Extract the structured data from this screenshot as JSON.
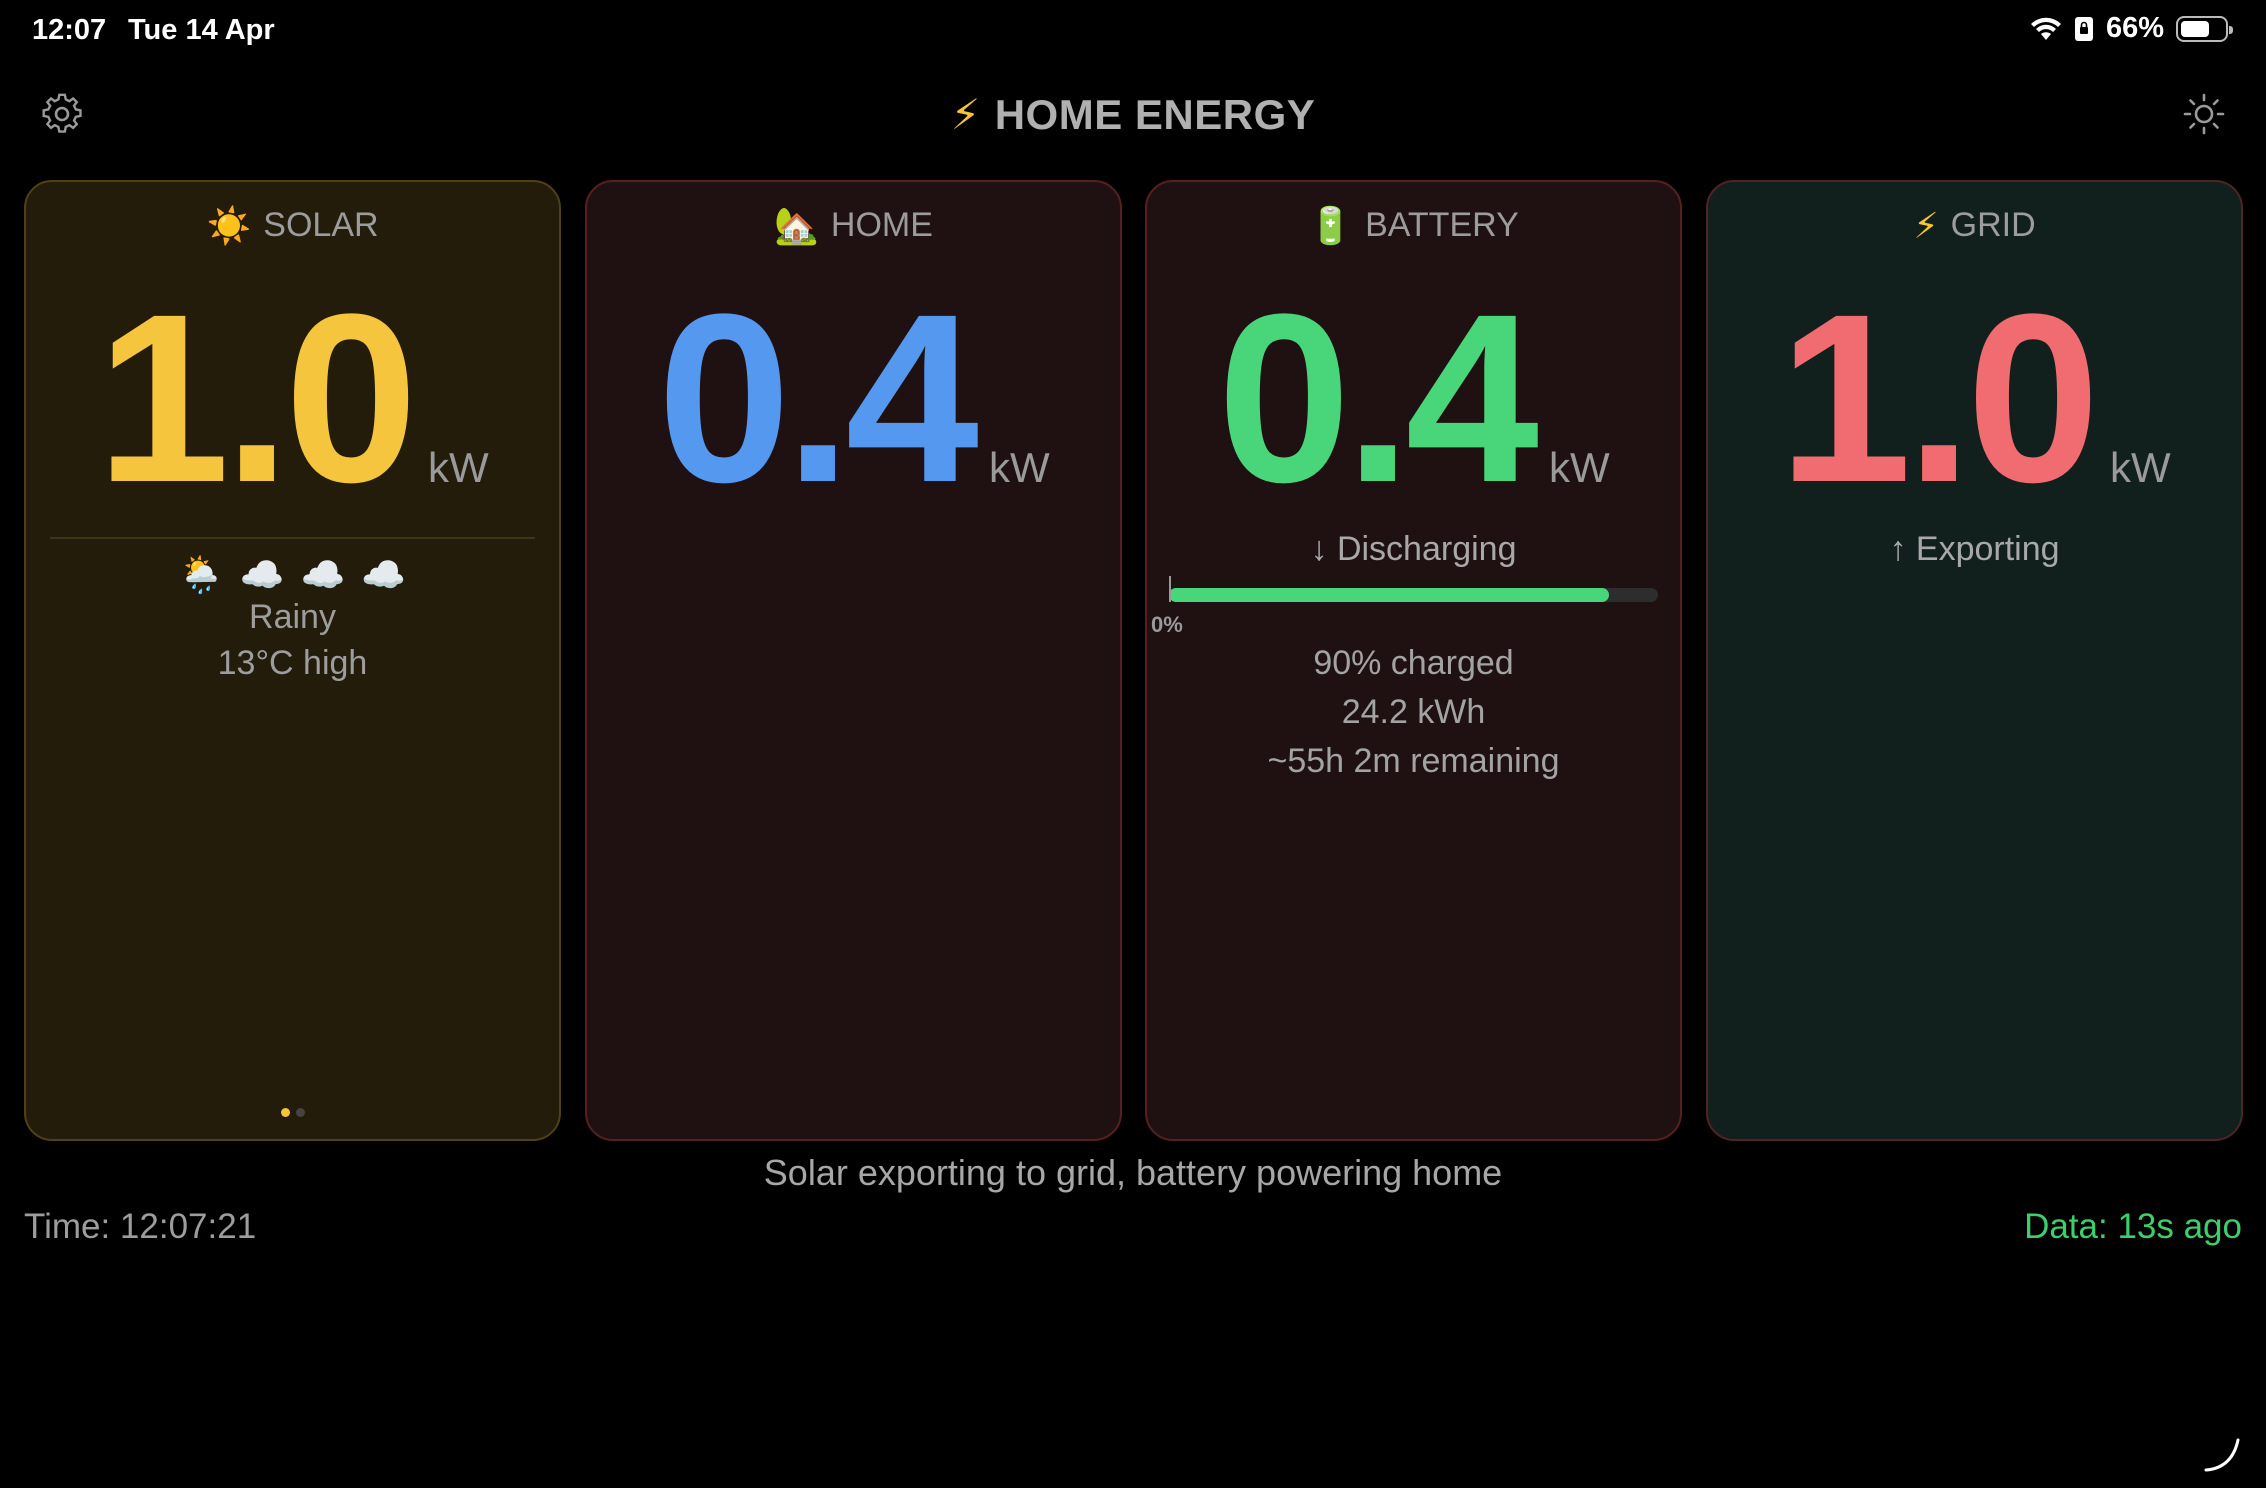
{
  "status_bar": {
    "time": "12:07",
    "date": "Tue 14 Apr",
    "battery_percent": "66%",
    "battery_level": 0.66,
    "icons": [
      "wifi-icon",
      "portrait-lock-icon",
      "battery-icon"
    ]
  },
  "header": {
    "title_icon": "⚡",
    "title": "HOME ENERGY",
    "left_icon": "gear-icon",
    "right_icon": "sun-brightness-icon"
  },
  "cards": {
    "solar": {
      "icon": "☀️",
      "title": "SOLAR",
      "value": "1.0",
      "unit": "kW",
      "forecast_icons": [
        "🌦️",
        "☁️",
        "☁️",
        "☁️"
      ],
      "weather": "Rainy",
      "temperature": "13°C high",
      "page_count": 2,
      "active_page": 0,
      "accent": "#f5c53d"
    },
    "home": {
      "icon": "🏡",
      "title": "HOME",
      "value": "0.4",
      "unit": "kW",
      "accent": "#5598f0"
    },
    "battery": {
      "icon": "🔋",
      "title": "BATTERY",
      "value": "0.4",
      "unit": "kW",
      "flow": "↓ Discharging",
      "charge_level": 0.9,
      "bar_min_label": "0%",
      "charged": "90% charged",
      "energy": "24.2 kWh",
      "remaining": "~55h 2m remaining",
      "accent": "#49d67a"
    },
    "grid": {
      "icon": "⚡",
      "title": "GRID",
      "value": "1.0",
      "unit": "kW",
      "flow": "↑ Exporting",
      "accent": "#f06c70"
    }
  },
  "footer": {
    "summary": "Solar exporting to grid, battery powering home",
    "time": "Time: 12:07:21",
    "data_age": "Data: 13s ago"
  }
}
